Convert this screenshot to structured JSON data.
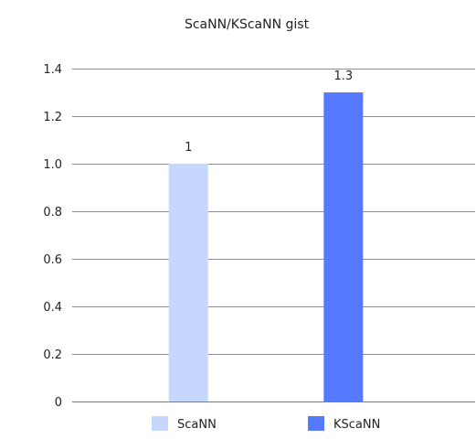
{
  "chart_data": {
    "type": "bar",
    "title": "ScaNN/KScaNN gist",
    "categories": [
      "ScaNN",
      "KScaNN"
    ],
    "values": [
      1,
      1.3
    ],
    "data_labels": [
      "1",
      "1.3"
    ],
    "colors": [
      "#c6d7ff",
      "#5579ff"
    ],
    "ylim": [
      0,
      1.4
    ],
    "yticks": [
      0,
      0.2,
      0.4,
      0.6,
      0.8,
      1.0,
      1.2,
      1.4
    ],
    "ytick_labels": [
      "0",
      "0.2",
      "0.4",
      "0.6",
      "0.8",
      "1.0",
      "1.2",
      "1.4"
    ],
    "grid": true,
    "legend": {
      "position": "bottom",
      "entries": [
        "ScaNN",
        "KScaNN"
      ]
    }
  }
}
